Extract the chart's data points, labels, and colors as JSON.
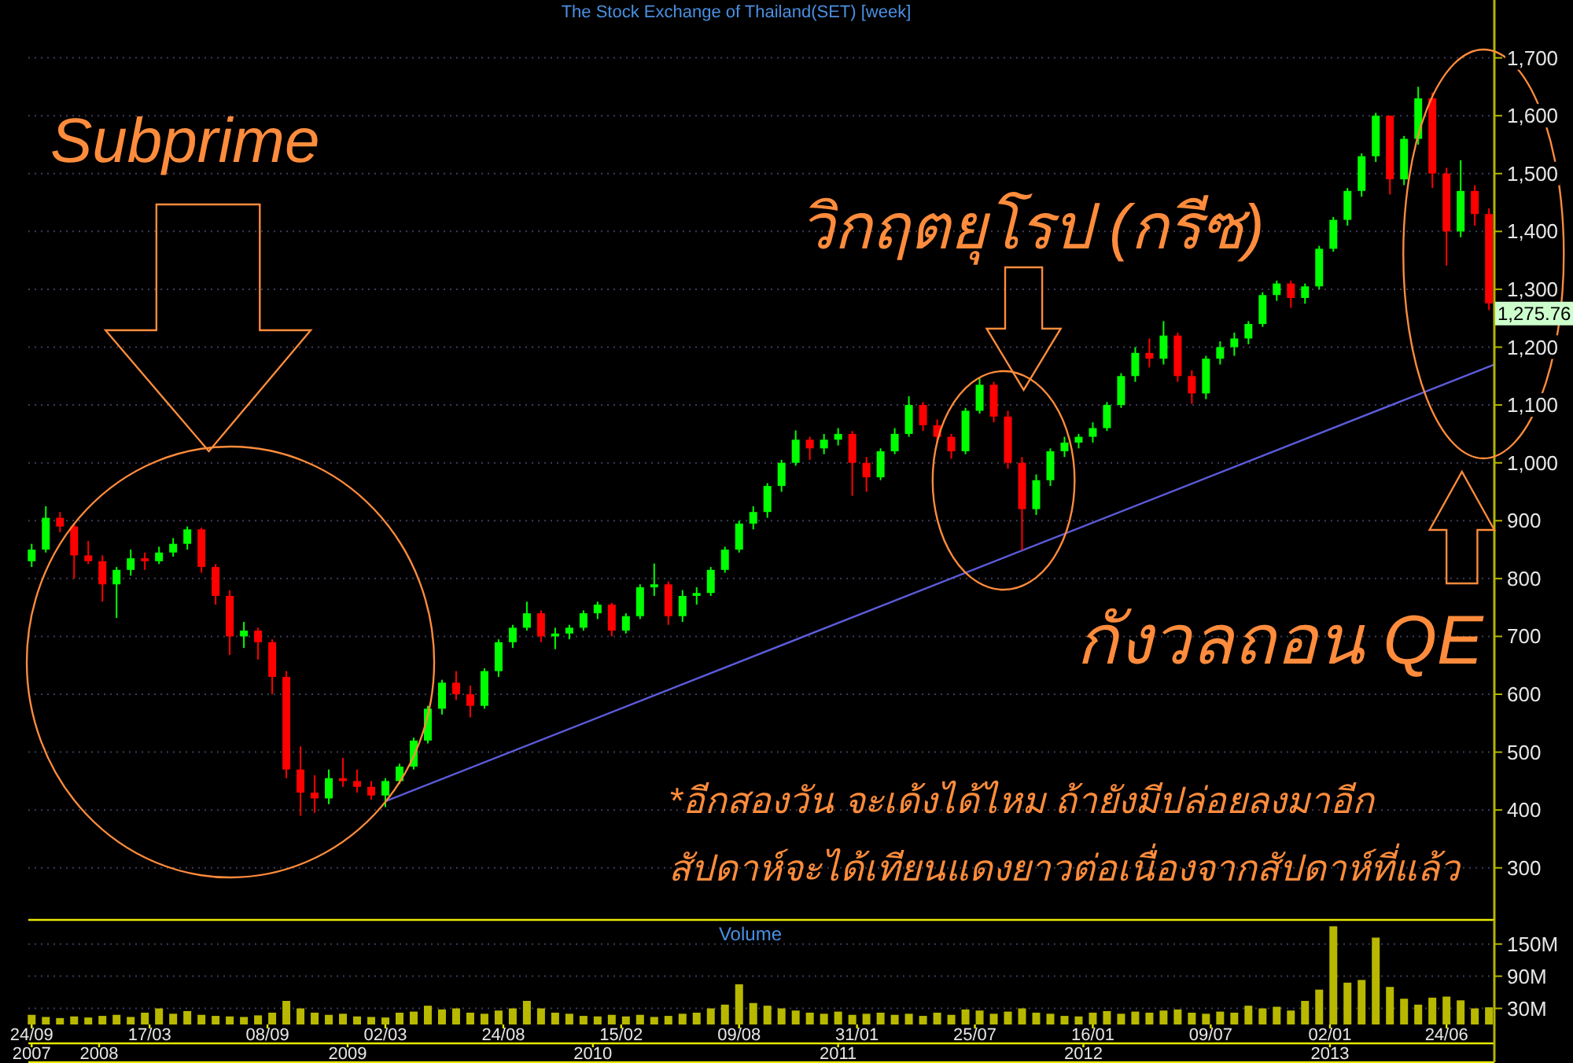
{
  "chart_data": [
    {
      "type": "candlestick",
      "title": "The Stock Exchange of Thailand(SET) [week]",
      "x": [
        "2007-09-24",
        "2007-10-15",
        "2007-11-05",
        "2007-11-26",
        "2007-12-17",
        "2008-01-07",
        "2008-01-28",
        "2008-02-18",
        "2008-03-10",
        "2008-03-31",
        "2008-04-21",
        "2008-05-12",
        "2008-06-02",
        "2008-06-23",
        "2008-07-14",
        "2008-08-04",
        "2008-08-25",
        "2008-09-15",
        "2008-10-06",
        "2008-10-27",
        "2008-11-17",
        "2008-12-08",
        "2008-12-29",
        "2009-01-19",
        "2009-02-09",
        "2009-03-02",
        "2009-03-23",
        "2009-04-13",
        "2009-05-04",
        "2009-05-25",
        "2009-06-15",
        "2009-07-06",
        "2009-07-27",
        "2009-08-17",
        "2009-09-07",
        "2009-09-28",
        "2009-10-19",
        "2009-11-09",
        "2009-11-30",
        "2009-12-21",
        "2010-01-11",
        "2010-02-01",
        "2010-02-22",
        "2010-03-15",
        "2010-04-05",
        "2010-04-26",
        "2010-05-17",
        "2010-06-07",
        "2010-06-28",
        "2010-07-19",
        "2010-08-09",
        "2010-08-30",
        "2010-09-20",
        "2010-10-11",
        "2010-11-01",
        "2010-11-22",
        "2010-12-13",
        "2011-01-03",
        "2011-01-24",
        "2011-02-14",
        "2011-03-07",
        "2011-03-28",
        "2011-04-18",
        "2011-05-09",
        "2011-05-30",
        "2011-06-20",
        "2011-07-11",
        "2011-08-01",
        "2011-08-22",
        "2011-09-12",
        "2011-10-03",
        "2011-10-24",
        "2011-11-14",
        "2011-12-05",
        "2011-12-26",
        "2012-01-16",
        "2012-02-06",
        "2012-02-27",
        "2012-03-19",
        "2012-04-09",
        "2012-04-30",
        "2012-05-21",
        "2012-06-11",
        "2012-07-02",
        "2012-07-23",
        "2012-08-13",
        "2012-09-03",
        "2012-09-24",
        "2012-10-15",
        "2012-11-05",
        "2012-11-26",
        "2012-12-17",
        "2013-01-07",
        "2013-01-28",
        "2013-02-18",
        "2013-03-11",
        "2013-04-01",
        "2013-04-22",
        "2013-05-13",
        "2013-06-03",
        "2013-06-24",
        "2013-07-15",
        "2013-08-05",
        "2013-08-26"
      ],
      "ohlc": [
        [
          830,
          860,
          820,
          850
        ],
        [
          850,
          925,
          845,
          905
        ],
        [
          905,
          915,
          880,
          890
        ],
        [
          890,
          895,
          800,
          840
        ],
        [
          840,
          865,
          825,
          830
        ],
        [
          830,
          840,
          760,
          790
        ],
        [
          790,
          820,
          732,
          815
        ],
        [
          815,
          850,
          805,
          835
        ],
        [
          835,
          845,
          815,
          830
        ],
        [
          830,
          855,
          825,
          845
        ],
        [
          845,
          870,
          838,
          860
        ],
        [
          860,
          890,
          850,
          885
        ],
        [
          885,
          888,
          810,
          820
        ],
        [
          820,
          825,
          755,
          770
        ],
        [
          770,
          780,
          668,
          700
        ],
        [
          700,
          725,
          680,
          710
        ],
        [
          710,
          715,
          660,
          690
        ],
        [
          690,
          695,
          600,
          630
        ],
        [
          630,
          640,
          455,
          470
        ],
        [
          470,
          510,
          390,
          430
        ],
        [
          430,
          460,
          395,
          420
        ],
        [
          420,
          470,
          410,
          455
        ],
        [
          455,
          490,
          440,
          450
        ],
        [
          450,
          470,
          430,
          440
        ],
        [
          440,
          450,
          418,
          425
        ],
        [
          425,
          455,
          405,
          450
        ],
        [
          450,
          480,
          445,
          475
        ],
        [
          475,
          525,
          470,
          520
        ],
        [
          520,
          580,
          515,
          575
        ],
        [
          575,
          625,
          565,
          620
        ],
        [
          620,
          640,
          590,
          600
        ],
        [
          600,
          615,
          560,
          580
        ],
        [
          580,
          645,
          575,
          640
        ],
        [
          640,
          695,
          630,
          690
        ],
        [
          690,
          720,
          680,
          715
        ],
        [
          715,
          760,
          710,
          740
        ],
        [
          740,
          745,
          690,
          700
        ],
        [
          700,
          715,
          678,
          705
        ],
        [
          705,
          720,
          695,
          715
        ],
        [
          715,
          745,
          710,
          740
        ],
        [
          740,
          760,
          730,
          755
        ],
        [
          755,
          758,
          700,
          710
        ],
        [
          710,
          740,
          705,
          735
        ],
        [
          735,
          790,
          730,
          785
        ],
        [
          785,
          826,
          770,
          790
        ],
        [
          790,
          795,
          720,
          735
        ],
        [
          735,
          780,
          725,
          770
        ],
        [
          770,
          785,
          755,
          775
        ],
        [
          775,
          820,
          770,
          815
        ],
        [
          815,
          855,
          810,
          850
        ],
        [
          850,
          900,
          845,
          895
        ],
        [
          895,
          925,
          885,
          915
        ],
        [
          915,
          965,
          905,
          960
        ],
        [
          960,
          1005,
          950,
          1000
        ],
        [
          1000,
          1056,
          995,
          1040
        ],
        [
          1040,
          1045,
          1005,
          1025
        ],
        [
          1025,
          1050,
          1015,
          1040
        ],
        [
          1040,
          1060,
          1030,
          1050
        ],
        [
          1050,
          1055,
          943,
          1000
        ],
        [
          1000,
          1010,
          950,
          975
        ],
        [
          975,
          1025,
          970,
          1020
        ],
        [
          1020,
          1060,
          1015,
          1050
        ],
        [
          1050,
          1115,
          1045,
          1100
        ],
        [
          1100,
          1105,
          1055,
          1065
        ],
        [
          1065,
          1075,
          1035,
          1045
        ],
        [
          1045,
          1050,
          1007,
          1020
        ],
        [
          1020,
          1095,
          1015,
          1090
        ],
        [
          1090,
          1146,
          1085,
          1135
        ],
        [
          1135,
          1140,
          1070,
          1080
        ],
        [
          1080,
          1090,
          990,
          1000
        ],
        [
          1000,
          1010,
          849,
          920
        ],
        [
          920,
          980,
          910,
          970
        ],
        [
          970,
          1025,
          960,
          1020
        ],
        [
          1020,
          1045,
          1010,
          1035
        ],
        [
          1035,
          1050,
          1025,
          1045
        ],
        [
          1045,
          1070,
          1035,
          1060
        ],
        [
          1060,
          1105,
          1055,
          1100
        ],
        [
          1100,
          1155,
          1095,
          1150
        ],
        [
          1150,
          1200,
          1140,
          1190
        ],
        [
          1190,
          1215,
          1165,
          1180
        ],
        [
          1180,
          1245,
          1170,
          1220
        ],
        [
          1220,
          1225,
          1140,
          1150
        ],
        [
          1150,
          1160,
          1102,
          1120
        ],
        [
          1120,
          1185,
          1110,
          1180
        ],
        [
          1180,
          1210,
          1170,
          1200
        ],
        [
          1200,
          1225,
          1185,
          1215
        ],
        [
          1215,
          1245,
          1205,
          1240
        ],
        [
          1240,
          1295,
          1235,
          1290
        ],
        [
          1290,
          1315,
          1280,
          1310
        ],
        [
          1310,
          1315,
          1268,
          1285
        ],
        [
          1285,
          1310,
          1275,
          1305
        ],
        [
          1305,
          1375,
          1300,
          1370
        ],
        [
          1370,
          1425,
          1365,
          1420
        ],
        [
          1420,
          1475,
          1410,
          1470
        ],
        [
          1470,
          1535,
          1460,
          1530
        ],
        [
          1530,
          1605,
          1520,
          1600
        ],
        [
          1600,
          1600,
          1464,
          1490
        ],
        [
          1490,
          1565,
          1480,
          1560
        ],
        [
          1560,
          1650,
          1550,
          1630
        ],
        [
          1630,
          1640,
          1475,
          1500
        ],
        [
          1500,
          1510,
          1341,
          1400
        ],
        [
          1400,
          1523,
          1390,
          1470
        ],
        [
          1470,
          1480,
          1410,
          1430
        ],
        [
          1430,
          1440,
          1264,
          1275.76
        ]
      ],
      "colors": [
        "#00ff00",
        "#00ff00",
        "#ff0000",
        "#ff0000",
        "#ff0000",
        "#ff0000",
        "#00ff00",
        "#00ff00",
        "#ff0000",
        "#00ff00",
        "#00ff00",
        "#00ff00",
        "#ff0000",
        "#ff0000",
        "#ff0000",
        "#00ff00",
        "#ff0000",
        "#ff0000",
        "#ff0000",
        "#ff0000",
        "#ff0000",
        "#00ff00",
        "#ff0000",
        "#ff0000",
        "#ff0000",
        "#00ff00",
        "#00ff00",
        "#00ff00",
        "#00ff00",
        "#00ff00",
        "#ff0000",
        "#ff0000",
        "#00ff00",
        "#00ff00",
        "#00ff00",
        "#00ff00",
        "#ff0000",
        "#00ff00",
        "#00ff00",
        "#00ff00",
        "#00ff00",
        "#ff0000",
        "#00ff00",
        "#00ff00",
        "#00ff00",
        "#ff0000",
        "#00ff00",
        "#00ff00",
        "#00ff00",
        "#00ff00",
        "#00ff00",
        "#00ff00",
        "#00ff00",
        "#00ff00",
        "#00ff00",
        "#ff0000",
        "#00ff00",
        "#00ff00",
        "#ff0000",
        "#ff0000",
        "#00ff00",
        "#00ff00",
        "#00ff00",
        "#ff0000",
        "#ff0000",
        "#ff0000",
        "#00ff00",
        "#00ff00",
        "#ff0000",
        "#ff0000",
        "#ff0000",
        "#00ff00",
        "#00ff00",
        "#00ff00",
        "#00ff00",
        "#00ff00",
        "#00ff00",
        "#00ff00",
        "#00ff00",
        "#ff0000",
        "#00ff00",
        "#ff0000",
        "#ff0000",
        "#00ff00",
        "#00ff00",
        "#00ff00",
        "#00ff00",
        "#00ff00",
        "#00ff00",
        "#ff0000",
        "#00ff00",
        "#00ff00",
        "#00ff00",
        "#00ff00",
        "#00ff00",
        "#00ff00",
        "#ff0000",
        "#00ff00",
        "#00ff00",
        "#ff0000",
        "#ff0000",
        "#00ff00",
        "#ff0000",
        "#ff0000"
      ],
      "series": [
        {
          "type": "line",
          "x": [
            "2009-03-02",
            "2013-09-03"
          ],
          "values": [
            415,
            1170
          ],
          "color": "#5c5cdc"
        }
      ],
      "xlim": [
        "2007-09-19",
        "2013-09-03"
      ],
      "ylim": [
        210,
        1800
      ],
      "yticks": [
        300,
        400,
        500,
        600,
        700,
        800,
        900,
        {
          "value": 1000,
          "label": "1,000"
        },
        {
          "value": 1100,
          "label": "1,100"
        },
        {
          "value": 1200,
          "label": "1,200"
        },
        {
          "value": 1300,
          "label": "1,300"
        },
        {
          "value": 1400,
          "label": "1,400"
        },
        {
          "value": 1500,
          "label": "1,500"
        },
        {
          "value": 1600,
          "label": "1,600"
        },
        {
          "value": 1700,
          "label": "1,700"
        }
      ],
      "grid": "y",
      "tick_labels": "y",
      "annotations": [
        "Subprime",
        "วิกฤตยุโรป (กรีซ)",
        "กังวลถอน QE",
        "*อีกสองวัน จะเด้งได้ไหม ถ้ายังมีปล่อยลงมาอีก",
        "สัปดาห์จะได้เทียนแดงยาวต่อเนื่องจากสัปดาห์ที่แล้ว",
        "1,275.76"
      ]
    },
    {
      "type": "bar",
      "title": "Volume",
      "x": [
        "2007-09-24",
        "2007-10-15",
        "2007-11-05",
        "2007-11-26",
        "2007-12-17",
        "2008-01-07",
        "2008-01-28",
        "2008-02-18",
        "2008-03-10",
        "2008-03-31",
        "2008-04-21",
        "2008-05-12",
        "2008-06-02",
        "2008-06-23",
        "2008-07-14",
        "2008-08-04",
        "2008-08-25",
        "2008-09-15",
        "2008-10-06",
        "2008-10-27",
        "2008-11-17",
        "2008-12-08",
        "2008-12-29",
        "2009-01-19",
        "2009-02-09",
        "2009-03-02",
        "2009-03-23",
        "2009-04-13",
        "2009-05-04",
        "2009-05-25",
        "2009-06-15",
        "2009-07-06",
        "2009-07-27",
        "2009-08-17",
        "2009-09-07",
        "2009-09-28",
        "2009-10-19",
        "2009-11-09",
        "2009-11-30",
        "2009-12-21",
        "2010-01-11",
        "2010-02-01",
        "2010-02-22",
        "2010-03-15",
        "2010-04-05",
        "2010-04-26",
        "2010-05-17",
        "2010-06-07",
        "2010-06-28",
        "2010-07-19",
        "2010-08-09",
        "2010-08-30",
        "2010-09-20",
        "2010-10-11",
        "2010-11-01",
        "2010-11-22",
        "2010-12-13",
        "2011-01-03",
        "2011-01-24",
        "2011-02-14",
        "2011-03-07",
        "2011-03-28",
        "2011-04-18",
        "2011-05-09",
        "2011-05-30",
        "2011-06-20",
        "2011-07-11",
        "2011-08-01",
        "2011-08-22",
        "2011-09-12",
        "2011-10-03",
        "2011-10-24",
        "2011-11-14",
        "2011-12-05",
        "2011-12-26",
        "2012-01-16",
        "2012-02-06",
        "2012-02-27",
        "2012-03-19",
        "2012-04-09",
        "2012-04-30",
        "2012-05-21",
        "2012-06-11",
        "2012-07-02",
        "2012-07-23",
        "2012-08-13",
        "2012-09-03",
        "2012-09-24",
        "2012-10-15",
        "2012-11-05",
        "2012-11-26",
        "2012-12-17",
        "2013-01-07",
        "2013-01-28",
        "2013-02-18",
        "2013-03-11",
        "2013-04-01",
        "2013-04-22",
        "2013-05-13",
        "2013-06-03",
        "2013-06-24",
        "2013-07-15",
        "2013-08-05",
        "2013-08-26"
      ],
      "values": [
        18,
        14,
        12,
        15,
        13,
        16,
        18,
        14,
        22,
        30,
        20,
        25,
        18,
        16,
        15,
        14,
        17,
        22,
        44,
        30,
        22,
        18,
        20,
        15,
        14,
        13,
        22,
        24,
        35,
        28,
        30,
        22,
        20,
        26,
        30,
        44,
        30,
        22,
        20,
        16,
        15,
        18,
        15,
        18,
        14,
        16,
        20,
        22,
        30,
        37,
        75,
        40,
        35,
        30,
        26,
        22,
        20,
        24,
        18,
        20,
        22,
        18,
        20,
        16,
        22,
        18,
        28,
        26,
        20,
        24,
        30,
        22,
        20,
        16,
        15,
        22,
        25,
        20,
        24,
        22,
        26,
        28,
        22,
        20,
        24,
        22,
        35,
        30,
        33,
        26,
        44,
        65,
        183,
        78,
        83,
        162,
        70,
        48,
        37,
        50,
        52,
        45,
        30,
        32
      ],
      "color": "#b8b800",
      "xlim": [
        "2007-09-19",
        "2013-09-03"
      ],
      "xticks": [
        {
          "value": "2007-09-24",
          "label": "24/09"
        },
        {
          "value": "2008-03-17",
          "label": "17/03"
        },
        {
          "value": "2008-09-08",
          "label": "08/09"
        },
        {
          "value": "2009-03-02",
          "label": "02/03"
        },
        {
          "value": "2009-08-24",
          "label": "24/08"
        },
        {
          "value": "2010-02-15",
          "label": "15/02"
        },
        {
          "value": "2010-08-09",
          "label": "09/08"
        },
        {
          "value": "2011-01-31",
          "label": "31/01"
        },
        {
          "value": "2011-07-25",
          "label": "25/07"
        },
        {
          "value": "2012-01-16",
          "label": "16/01"
        },
        {
          "value": "2012-07-09",
          "label": "09/07"
        },
        {
          "value": "2013-01-02",
          "label": "02/01"
        },
        {
          "value": "2013-06-24",
          "label": "24/06"
        }
      ],
      "x2lim": [
        "2007-09-19",
        "2013-09-03"
      ],
      "x2ticks": [
        {
          "value": "2007-09-24",
          "label": "2007"
        },
        {
          "value": "2008-01-02",
          "label": "2008"
        },
        {
          "value": "2009-01-05",
          "label": "2009"
        },
        {
          "value": "2010-01-04",
          "label": "2010"
        },
        {
          "value": "2011-01-03",
          "label": "2011"
        },
        {
          "value": "2012-01-02",
          "label": "2012"
        },
        {
          "value": "2013-01-02",
          "label": "2013"
        }
      ],
      "ylim": [
        0,
        195
      ],
      "yticks": [
        {
          "value": 30,
          "label": "30M"
        },
        {
          "value": 90,
          "label": "90M"
        },
        {
          "value": 150,
          "label": "150M"
        }
      ],
      "grid": "y"
    }
  ]
}
